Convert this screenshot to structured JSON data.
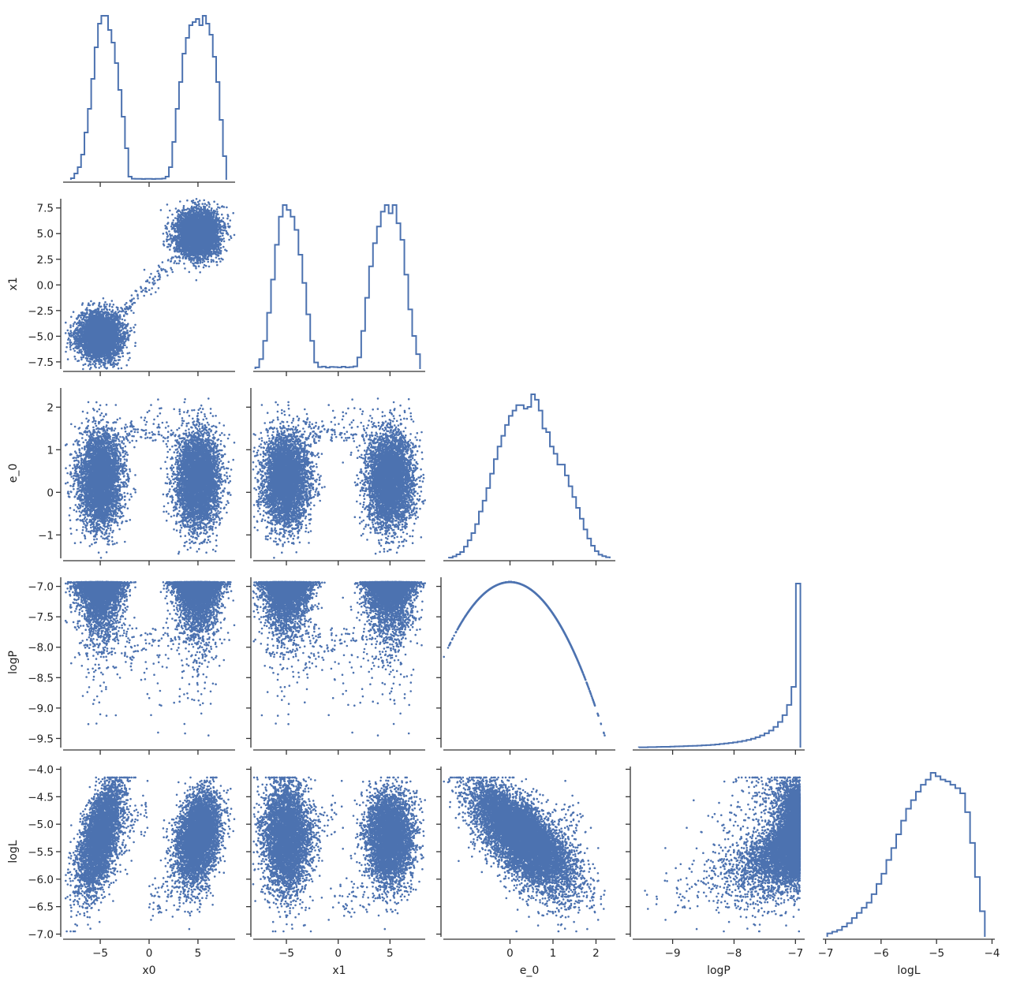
{
  "figure": {
    "type": "corner-plot",
    "variables": [
      "x0",
      "x1",
      "e_0",
      "logP",
      "logL"
    ],
    "color": "#4c72b0",
    "axis_color": "#333333"
  },
  "chart_data": {
    "type": "corner",
    "variables": [
      "x0",
      "x1",
      "e_0",
      "logP",
      "logL"
    ],
    "axes": {
      "x0": {
        "label": "x0",
        "range": [
          -8.8,
          8.8
        ],
        "ticks": [
          -5,
          0,
          5
        ],
        "tick_labels": [
          "−5",
          "0",
          "5"
        ]
      },
      "x1": {
        "label": "x1",
        "range": [
          -8.2,
          8.4
        ],
        "ticks": [
          -7.5,
          -5.0,
          -2.5,
          0.0,
          2.5,
          5.0,
          7.5
        ],
        "tick_labels": [
          "−7.5",
          "−5.0",
          "−2.5",
          "0.0",
          "2.5",
          "5.0",
          "7.5"
        ],
        "x_ticks": [
          -5,
          0,
          5
        ],
        "x_tick_labels": [
          "−5",
          "0",
          "5"
        ]
      },
      "e_0": {
        "label": "e_0",
        "range": [
          -1.55,
          2.45
        ],
        "ticks": [
          -1,
          0,
          1,
          2
        ],
        "tick_labels": [
          "−1",
          "0",
          "1",
          "2"
        ],
        "x_ticks": [
          0,
          1,
          2
        ],
        "x_tick_labels": [
          "0",
          "1",
          "2"
        ]
      },
      "logP": {
        "label": "logP",
        "range": [
          -9.65,
          -6.85
        ],
        "ticks": [
          -9.5,
          -9.0,
          -8.5,
          -8.0,
          -7.5,
          -7.0
        ],
        "tick_labels": [
          "−9.5",
          "−9.0",
          "−8.5",
          "−8.0",
          "−7.5",
          "−7.0"
        ],
        "x_ticks": [
          -9,
          -8,
          -7
        ],
        "x_tick_labels": [
          "−9",
          "−8",
          "−7"
        ]
      },
      "logL": {
        "label": "logL",
        "range": [
          -7.05,
          -3.95
        ],
        "ticks": [
          -7.0,
          -6.5,
          -6.0,
          -5.5,
          -5.0,
          -4.5,
          -4.0
        ],
        "tick_labels": [
          "−7.0",
          "−6.5",
          "−6.0",
          "−5.5",
          "−5.0",
          "−4.5",
          "−4.0"
        ],
        "x_ticks": [
          -7,
          -6,
          -5,
          -4
        ],
        "x_tick_labels": [
          "−7",
          "−6",
          "−5",
          "−4"
        ]
      }
    },
    "histograms": {
      "x0": {
        "bin_edges": [
          -8.0,
          7.9
        ],
        "counts": [
          1,
          4,
          8,
          16,
          30,
          45,
          64,
          84,
          99,
          104,
          104,
          95,
          87,
          74,
          57,
          40,
          20,
          2,
          0.7,
          0.6,
          0.6,
          0.5,
          0.6,
          0.6,
          0.5,
          0.6,
          0.6,
          0.8,
          2,
          8,
          24,
          45,
          62,
          80,
          90,
          98,
          100,
          102,
          98,
          104,
          99,
          92,
          78,
          62,
          38,
          15
        ]
      },
      "x1": {
        "bin_edges": [
          -8.0,
          7.9
        ],
        "counts": [
          1,
          6,
          17,
          34,
          54,
          75,
          92,
          99,
          96,
          92,
          84,
          69,
          52,
          33,
          17,
          4,
          1.2,
          1.5,
          0.9,
          1.3,
          1.2,
          1.0,
          1.4,
          1.0,
          1.2,
          1.6,
          7,
          23,
          43,
          62,
          76,
          86,
          95,
          99,
          94,
          99,
          88,
          78,
          57,
          36,
          20,
          9
        ]
      },
      "e_0": {
        "bin_edges": [
          -1.42,
          2.32
        ],
        "counts": [
          0.4,
          1.1,
          2.2,
          3.5,
          6.5,
          10,
          14,
          19,
          26,
          32,
          39,
          47,
          55,
          62,
          68,
          74,
          79,
          82,
          85,
          85,
          83,
          84,
          91,
          88,
          82,
          72,
          70,
          62,
          58,
          52,
          52,
          46,
          40,
          34,
          28,
          22,
          16,
          11,
          7,
          4,
          2,
          1.2,
          0.6
        ]
      },
      "logP": {
        "bin_edges": [
          -9.55,
          -6.92
        ],
        "counts": [
          0.2,
          0.2,
          0.3,
          0.3,
          0.4,
          0.5,
          0.5,
          0.6,
          0.7,
          0.8,
          0.9,
          1.0,
          1.1,
          1.2,
          1.4,
          1.5,
          1.7,
          1.9,
          2.2,
          2.5,
          2.8,
          3.2,
          3.6,
          4.1,
          4.7,
          5.4,
          6.3,
          7.4,
          8.7,
          10.4,
          12.6,
          15.6,
          19.8,
          26,
          37,
          100
        ]
      },
      "logL": {
        "bin_edges": [
          -6.97,
          -4.13
        ],
        "counts": [
          2,
          3,
          4,
          6,
          8,
          11,
          14,
          17,
          20,
          25,
          31,
          37,
          45,
          52,
          60,
          68,
          75,
          80,
          85,
          89,
          92,
          96,
          94,
          92,
          91,
          89,
          87,
          84,
          73,
          55,
          35,
          15
        ]
      }
    },
    "scatter_samples": 9000,
    "marker_size_px": 1.3
  }
}
